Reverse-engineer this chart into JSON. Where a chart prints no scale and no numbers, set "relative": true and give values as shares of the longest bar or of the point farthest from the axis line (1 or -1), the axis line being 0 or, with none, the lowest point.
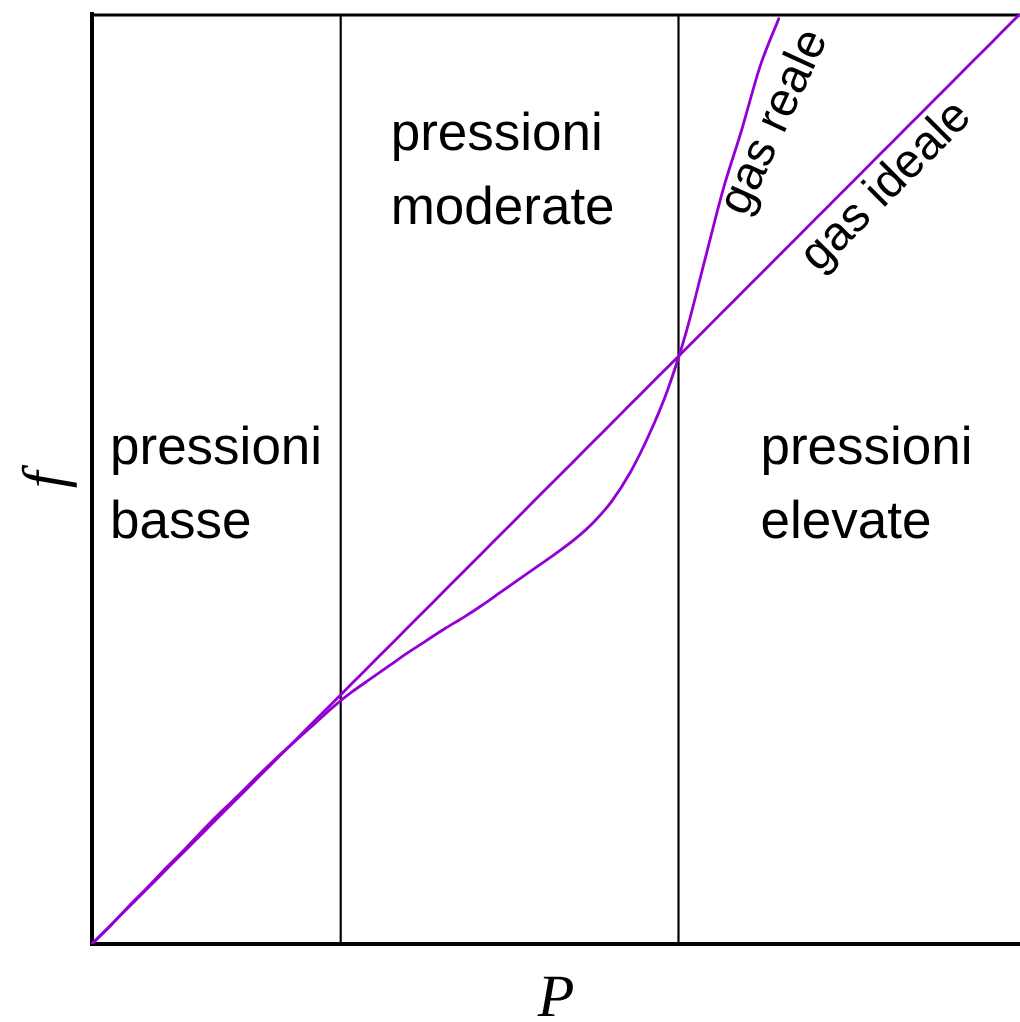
{
  "chart_data": {
    "type": "line",
    "relative": true,
    "xlabel": "P",
    "ylabel": "f",
    "marker": "none",
    "line_style": "solid",
    "categories": [
      null,
      null,
      null,
      null,
      null,
      null,
      null,
      null,
      null,
      null,
      null,
      null,
      null,
      null,
      null,
      null,
      null,
      null,
      null,
      null,
      null,
      null,
      null,
      null,
      null,
      null,
      null,
      null,
      null,
      null,
      null,
      null,
      null,
      null,
      null,
      null,
      null,
      null,
      null,
      null,
      null,
      null,
      null,
      null,
      null,
      null,
      null,
      null,
      null,
      null,
      null
    ],
    "series": [
      {
        "name": "gas reale",
        "color": "#9400d3",
        "values": [
          0,
          0.02,
          0.041,
          0.061,
          0.082,
          0.102,
          0.123,
          0.143,
          0.162,
          0.182,
          0.201,
          0.219,
          0.237,
          0.255,
          0.271,
          0.285,
          0.299,
          0.313,
          0.326,
          0.339,
          0.351,
          0.364,
          0.378,
          0.392,
          0.406,
          0.42,
          0.435,
          0.453,
          0.476,
          0.507,
          0.547,
          0.595,
          0.657,
          0.734,
          0.811,
          0.875,
          0.944,
          0.995,
          null,
          null,
          null,
          null,
          null,
          null,
          null,
          null,
          null,
          null,
          null,
          null,
          null
        ]
      },
      {
        "name": "gas ideale",
        "color": "#9400d3",
        "values": [
          0,
          0.02,
          0.04,
          0.06,
          0.08,
          0.1,
          0.12,
          0.14,
          0.16,
          0.18,
          0.2,
          0.22,
          0.24,
          0.26,
          0.28,
          0.3,
          0.32,
          0.34,
          0.36,
          0.38,
          0.4,
          0.42,
          0.44,
          0.46,
          0.48,
          0.5,
          0.52,
          0.54,
          0.56,
          0.58,
          0.6,
          0.62,
          0.64,
          0.66,
          0.68,
          0.7,
          0.72,
          0.74,
          0.76,
          0.78,
          0.8,
          0.82,
          0.84,
          0.86,
          0.88,
          0.9,
          0.92,
          0.94,
          0.96,
          0.98,
          1
        ]
      }
    ],
    "annotations": [
      "pressioni basse",
      "pressioni moderate",
      "pressioni elevate"
    ]
  }
}
